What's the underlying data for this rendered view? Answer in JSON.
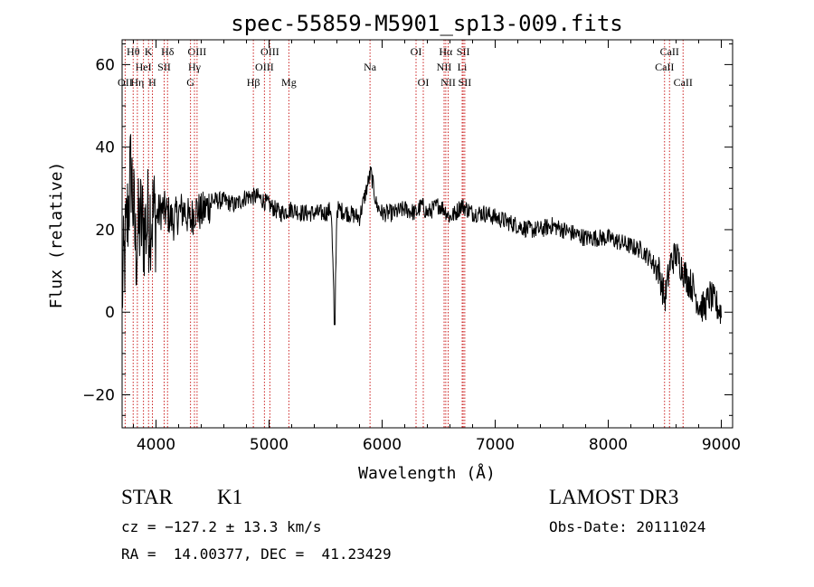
{
  "chart_data": {
    "type": "line",
    "title": "spec-55859-M5901_sp13-009.fits",
    "xlabel": "Wavelength (Å)",
    "ylabel": "Flux (relative)",
    "xlim": [
      3700,
      9100
    ],
    "ylim": [
      -28,
      66
    ],
    "xticks": [
      4000,
      5000,
      6000,
      7000,
      8000,
      9000
    ],
    "xtick_labels": [
      "4000",
      "5000",
      "6000",
      "7000",
      "8000",
      "9000"
    ],
    "yticks": [
      -20,
      0,
      20,
      40,
      60
    ],
    "ytick_labels": [
      "−20",
      "0",
      "20",
      "40",
      "60"
    ],
    "grid": false,
    "series": [
      {
        "name": "spectrum",
        "color": "#000000",
        "x": [
          3700,
          3740,
          3780,
          3820,
          3860,
          3900,
          3950,
          4000,
          4050,
          4100,
          4150,
          4200,
          4250,
          4300,
          4350,
          4400,
          4500,
          4600,
          4700,
          4800,
          4900,
          5000,
          5100,
          5200,
          5300,
          5400,
          5500,
          5550,
          5580,
          5600,
          5700,
          5800,
          5900,
          5950,
          6000,
          6100,
          6200,
          6300,
          6350,
          6400,
          6500,
          6550,
          6600,
          6650,
          6700,
          6800,
          6900,
          7000,
          7100,
          7200,
          7300,
          7400,
          7500,
          7600,
          7700,
          7800,
          7900,
          8000,
          8100,
          8200,
          8300,
          8400,
          8450,
          8500,
          8550,
          8600,
          8650,
          8700,
          8750,
          8800,
          8850,
          8900,
          8950,
          9000
        ],
        "y": [
          5,
          20,
          35,
          15,
          22,
          20,
          24,
          23,
          25,
          24,
          22,
          24,
          25,
          22,
          25,
          24,
          27,
          27,
          26,
          28,
          28,
          26,
          24,
          25,
          24,
          24,
          24,
          25,
          -3,
          25,
          24,
          23,
          34,
          26,
          24,
          24,
          25,
          24,
          26,
          24,
          26,
          25,
          23,
          24,
          26,
          24,
          24,
          23,
          22,
          21,
          20,
          20,
          21,
          20,
          19,
          18,
          18,
          18,
          17,
          16,
          15,
          12,
          10,
          3,
          12,
          14,
          11,
          8,
          6,
          2,
          1,
          4,
          2,
          0
        ]
      }
    ],
    "spectral_lines": [
      {
        "label": "Hθ",
        "wavelength": 3798,
        "row": 1
      },
      {
        "label": "K",
        "wavelength": 3934,
        "row": 1
      },
      {
        "label": "Hδ",
        "wavelength": 4102,
        "row": 1
      },
      {
        "label": "OIII",
        "wavelength": 4363,
        "row": 1
      },
      {
        "label": "OIII",
        "wavelength": 5007,
        "row": 1
      },
      {
        "label": "OI",
        "wavelength": 6300,
        "row": 1
      },
      {
        "label": "Hα",
        "wavelength": 6563,
        "row": 1
      },
      {
        "label": "SII",
        "wavelength": 6717,
        "row": 1
      },
      {
        "label": "CaII",
        "wavelength": 8542,
        "row": 1
      },
      {
        "label": "HeI",
        "wavelength": 3889,
        "row": 2
      },
      {
        "label": "SII",
        "wavelength": 4072,
        "row": 2
      },
      {
        "label": "Hγ",
        "wavelength": 4340,
        "row": 2
      },
      {
        "label": "OIII",
        "wavelength": 4959,
        "row": 2
      },
      {
        "label": "Na",
        "wavelength": 5893,
        "row": 2
      },
      {
        "label": "NII",
        "wavelength": 6548,
        "row": 2
      },
      {
        "label": "Li",
        "wavelength": 6708,
        "row": 2
      },
      {
        "label": "CaII",
        "wavelength": 8498,
        "row": 2
      },
      {
        "label": "OII",
        "wavelength": 3727,
        "row": 3
      },
      {
        "label": "Hη",
        "wavelength": 3835,
        "row": 3
      },
      {
        "label": "H",
        "wavelength": 3968,
        "row": 3
      },
      {
        "label": "G",
        "wavelength": 4305,
        "row": 3
      },
      {
        "label": "Hβ",
        "wavelength": 4861,
        "row": 3
      },
      {
        "label": "Mg",
        "wavelength": 5175,
        "row": 3
      },
      {
        "label": "OI",
        "wavelength": 6364,
        "row": 3
      },
      {
        "label": "NII",
        "wavelength": 6584,
        "row": 3
      },
      {
        "label": "SII",
        "wavelength": 6731,
        "row": 3
      },
      {
        "label": "CaII",
        "wavelength": 8662,
        "row": 3
      }
    ]
  },
  "info": {
    "class_label": "STAR",
    "subclass": "K1",
    "survey": "LAMOST DR3",
    "redshift_text": "cz = −127.2 ± 13.3 km/s",
    "obs_date": "Obs-Date: 20111024",
    "coords": "RA =  14.00377, DEC =  41.23429"
  }
}
